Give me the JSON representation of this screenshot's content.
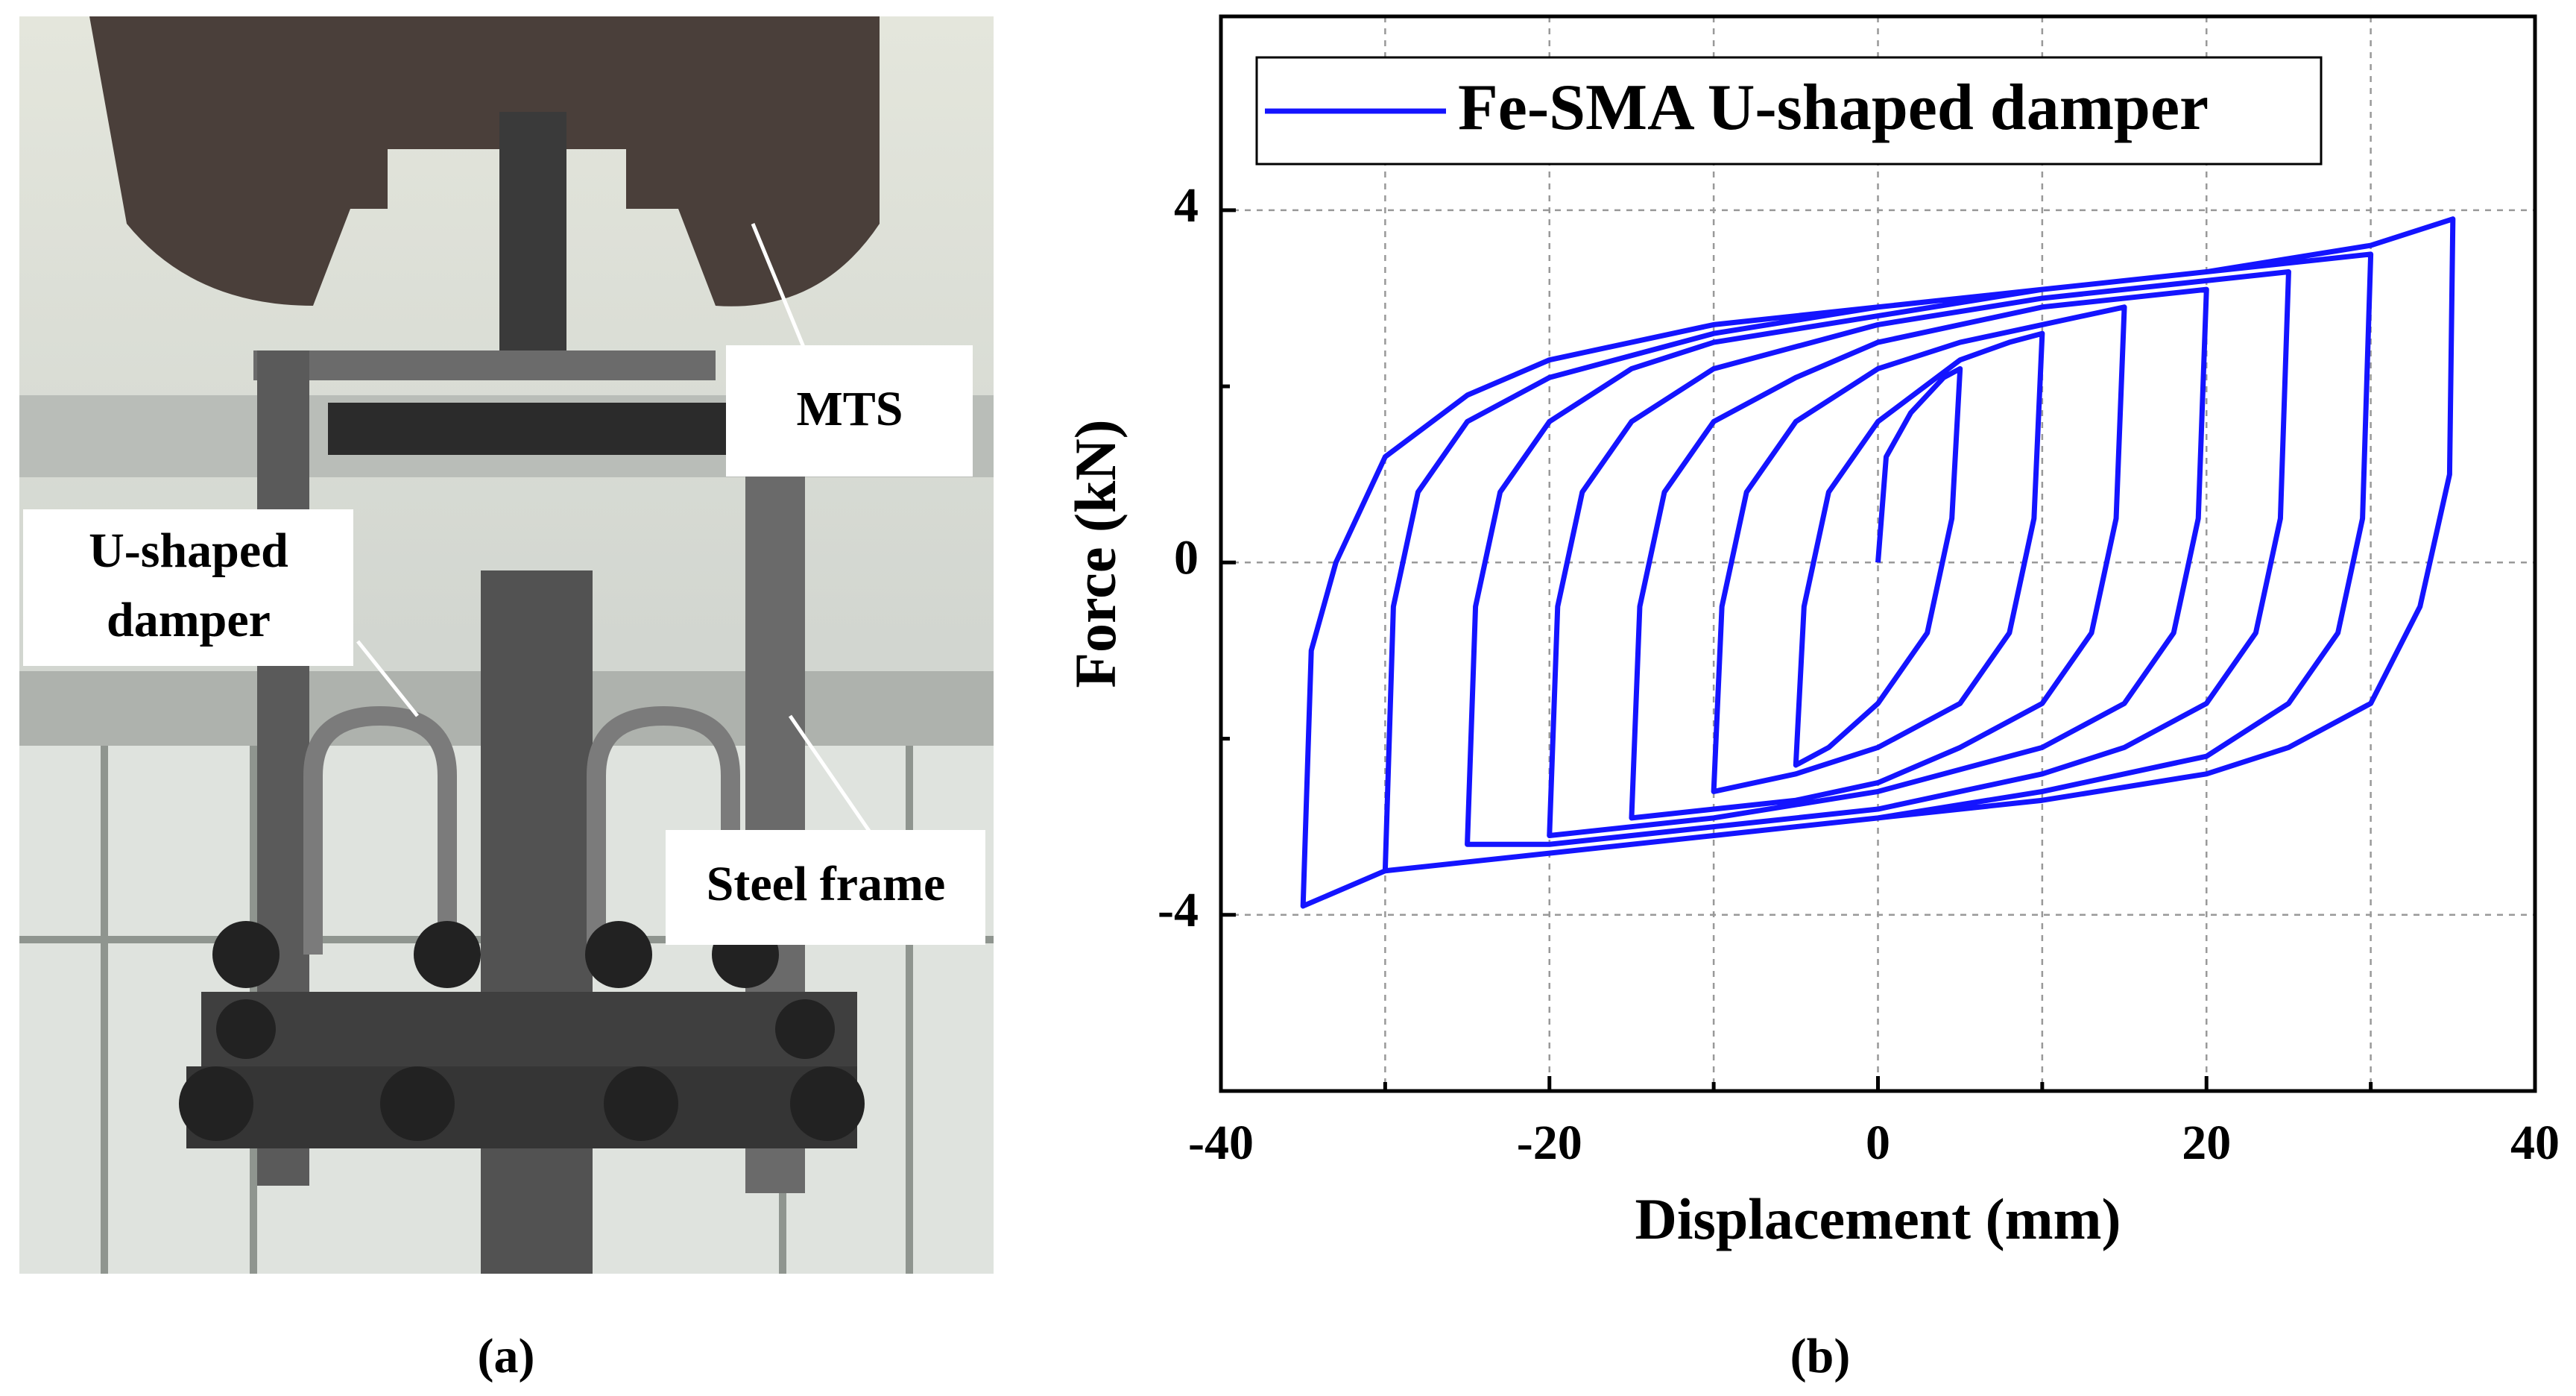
{
  "photo_labels": {
    "mts": "MTS",
    "damper": [
      "U-shaped",
      "damper"
    ],
    "frame": "Steel frame"
  },
  "captions": [
    "(a)",
    "(b)"
  ],
  "chart_data": {
    "type": "line",
    "x_label": "Displacement (mm)",
    "y_label": "Force (kN)",
    "xlim": [
      -40,
      40
    ],
    "xticks": [
      -40,
      -20,
      0,
      20,
      40
    ],
    "xminorticks": [
      -30,
      -10,
      10,
      30
    ],
    "ylim": [
      -6,
      6.2
    ],
    "yticks": [
      -4,
      0,
      4
    ],
    "yminorticks": [
      -2,
      2
    ],
    "grid": true,
    "legend": "upper left",
    "x": [
      0,
      0.5,
      2,
      4,
      5,
      4.5,
      3,
      0,
      -3,
      -5,
      -4.5,
      -3,
      0,
      5,
      8,
      10,
      9.5,
      8,
      5,
      0,
      -5,
      -10,
      -9.5,
      -8,
      -5,
      0,
      5,
      10,
      15,
      14.5,
      13,
      10,
      5,
      0,
      -5,
      -10,
      -15,
      -14.5,
      -13,
      -10,
      -5,
      0,
      10,
      20,
      19.5,
      18,
      15,
      10,
      0,
      -10,
      -20,
      -19.5,
      -18,
      -15,
      -10,
      0,
      10,
      20,
      25,
      24.5,
      23,
      20,
      15,
      10,
      0,
      -10,
      -20,
      -25,
      -24.5,
      -23,
      -20,
      -15,
      -10,
      0,
      10,
      20,
      30,
      29.5,
      28,
      25,
      20,
      10,
      0,
      -10,
      -20,
      -30,
      -29.5,
      -28,
      -25,
      -20,
      -10,
      0,
      10,
      20,
      30,
      35,
      34.8,
      33,
      30,
      25,
      20,
      10,
      0,
      -10,
      -20,
      -30,
      -35,
      -34.5,
      -33,
      -30,
      -25,
      -20,
      -10,
      0,
      10,
      20,
      30,
      35
    ],
    "series": [
      {
        "name": "Fe-SMA U-shaped damper",
        "color": "#1414ff",
        "values": [
          0,
          1.2,
          1.7,
          2.1,
          2.2,
          0.5,
          -0.8,
          -1.6,
          -2.1,
          -2.3,
          -0.5,
          0.8,
          1.6,
          2.3,
          2.5,
          2.6,
          0.5,
          -0.8,
          -1.6,
          -2.1,
          -2.4,
          -2.6,
          -0.5,
          0.8,
          1.6,
          2.2,
          2.5,
          2.7,
          2.9,
          0.5,
          -0.8,
          -1.6,
          -2.1,
          -2.5,
          -2.7,
          -2.8,
          -2.9,
          -0.5,
          0.8,
          1.6,
          2.1,
          2.5,
          2.9,
          3.1,
          0.5,
          -0.8,
          -1.6,
          -2.1,
          -2.6,
          -2.9,
          -3.1,
          -0.5,
          0.8,
          1.6,
          2.2,
          2.7,
          3.0,
          3.2,
          3.3,
          0.5,
          -0.8,
          -1.6,
          -2.1,
          -2.4,
          -2.8,
          -3.0,
          -3.2,
          -3.2,
          -0.5,
          0.8,
          1.6,
          2.2,
          2.5,
          2.8,
          3.1,
          3.3,
          3.5,
          0.5,
          -0.8,
          -1.6,
          -2.2,
          -2.6,
          -2.9,
          -3.1,
          -3.3,
          -3.5,
          -0.5,
          0.8,
          1.6,
          2.1,
          2.6,
          2.9,
          3.1,
          3.3,
          3.6,
          3.9,
          1.0,
          -0.5,
          -1.6,
          -2.1,
          -2.4,
          -2.7,
          -2.9,
          -3.1,
          -3.3,
          -3.5,
          -3.9,
          -1,
          0,
          1.2,
          1.9,
          2.3,
          2.7,
          2.9,
          3.1,
          3.3,
          3.6,
          3.9
        ]
      }
    ]
  }
}
